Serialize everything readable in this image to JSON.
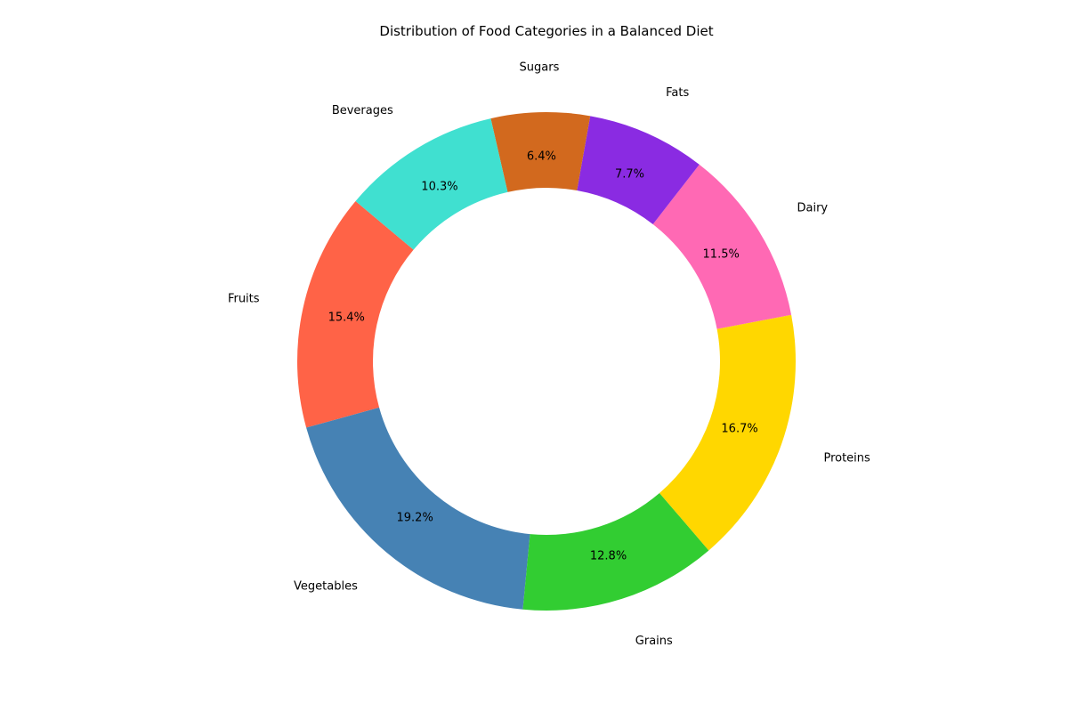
{
  "chart_data": {
    "type": "pie",
    "donut": true,
    "title": "Distribution of Food Categories in a Balanced Diet",
    "start_angle_deg": 140,
    "direction": "counterclockwise",
    "slices": [
      {
        "label": "Fruits",
        "value": 15.4,
        "pct_label": "15.4%",
        "color": "#FF6347"
      },
      {
        "label": "Vegetables",
        "value": 19.2,
        "pct_label": "19.2%",
        "color": "#4682B4"
      },
      {
        "label": "Grains",
        "value": 12.8,
        "pct_label": "12.8%",
        "color": "#32CD32"
      },
      {
        "label": "Proteins",
        "value": 16.7,
        "pct_label": "16.7%",
        "color": "#FFD700"
      },
      {
        "label": "Dairy",
        "value": 11.5,
        "pct_label": "11.5%",
        "color": "#FF69B4"
      },
      {
        "label": "Fats",
        "value": 7.7,
        "pct_label": "7.7%",
        "color": "#8A2BE2"
      },
      {
        "label": "Sugars",
        "value": 6.4,
        "pct_label": "6.4%",
        "color": "#D2691E"
      },
      {
        "label": "Beverages",
        "value": 10.3,
        "pct_label": "10.3%",
        "color": "#40E0D0"
      }
    ]
  }
}
